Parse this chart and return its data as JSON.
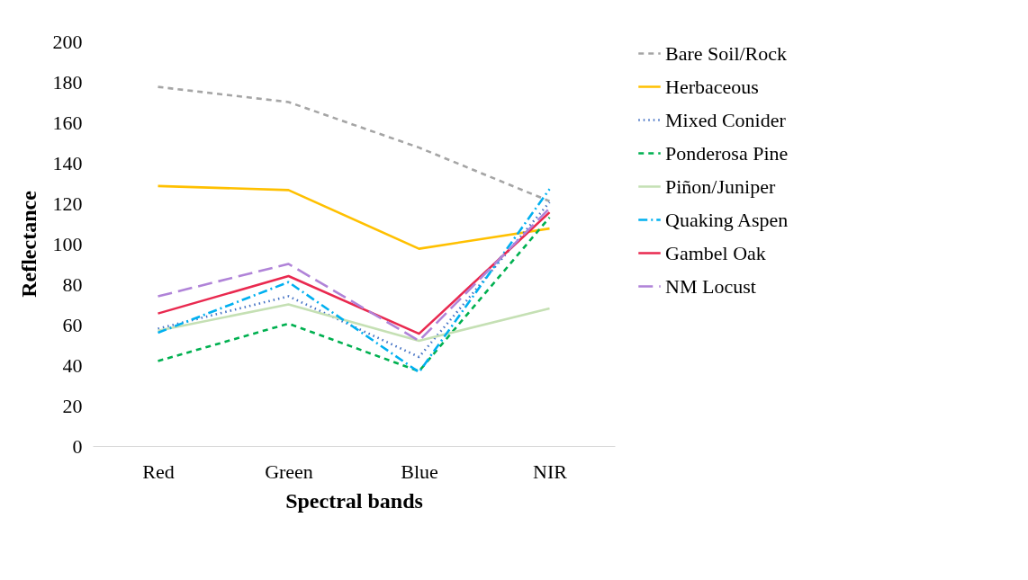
{
  "chart_data": {
    "type": "line",
    "xlabel": "Spectral bands",
    "ylabel": "Reflectance",
    "categories": [
      "Red",
      "Green",
      "Blue",
      "NIR"
    ],
    "ylim": [
      0,
      200
    ],
    "yticks": [
      0,
      20,
      40,
      60,
      80,
      100,
      120,
      140,
      160,
      180,
      200
    ],
    "grid": false,
    "legend": "right",
    "marker": "none",
    "series": [
      {
        "name": "Bare Soil/Rock",
        "color": "#a5a5a5",
        "line_style": "dashed",
        "values": [
          177.5,
          170,
          147.5,
          121
        ]
      },
      {
        "name": "Herbaceous",
        "color": "#ffc000",
        "line_style": "solid",
        "values": [
          128.5,
          126.5,
          97.5,
          107.5
        ]
      },
      {
        "name": "Mixed Conider",
        "color": "#4472c4",
        "line_style": "dotted",
        "values": [
          58,
          74,
          44,
          120.5
        ]
      },
      {
        "name": "Ponderosa Pine",
        "color": "#00b050",
        "line_style": "dashed",
        "values": [
          42,
          60.5,
          37,
          113
        ]
      },
      {
        "name": "Piñon/Juniper",
        "color": "#c5e0b4",
        "line_style": "solid",
        "values": [
          57,
          70,
          52,
          68
        ]
      },
      {
        "name": "Quaking Aspen",
        "color": "#00b0f0",
        "line_style": "dashdot",
        "values": [
          56,
          81,
          36.5,
          127
        ]
      },
      {
        "name": "Gambel Oak",
        "color": "#e9294f",
        "line_style": "solid",
        "values": [
          65.5,
          84,
          55.5,
          115.5
        ]
      },
      {
        "name": "NM Locust",
        "color": "#b083d8",
        "line_style": "longdash",
        "values": [
          74,
          90,
          52,
          117.5
        ]
      }
    ]
  }
}
